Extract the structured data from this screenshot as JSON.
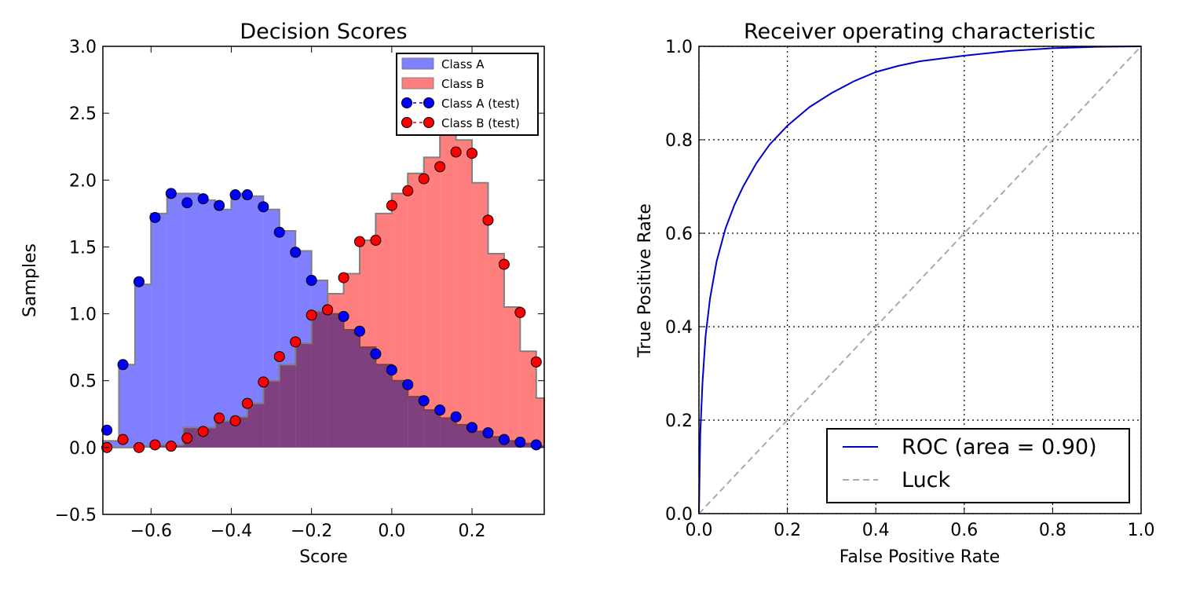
{
  "chart_data": [
    {
      "type": "bar",
      "title": "Decision Scores",
      "xlabel": "Score",
      "ylabel": "Samples",
      "xlim": [
        -0.72,
        0.38
      ],
      "ylim": [
        -0.5,
        3.0
      ],
      "xticks": [
        -0.6,
        -0.4,
        -0.2,
        0.0,
        0.2
      ],
      "xtick_labels": [
        "−0.6",
        "−0.4",
        "−0.2",
        "0.0",
        "0.2"
      ],
      "yticks": [
        -0.5,
        0.0,
        0.5,
        1.0,
        1.5,
        2.0,
        2.5,
        3.0
      ],
      "ytick_labels": [
        "−0.5",
        "0.0",
        "0.5",
        "1.0",
        "1.5",
        "2.0",
        "2.5",
        "3.0"
      ],
      "grid": false,
      "legend_position": "top-right",
      "bin_edges": [
        -0.72,
        -0.68,
        -0.64,
        -0.6,
        -0.56,
        -0.52,
        -0.48,
        -0.44,
        -0.4,
        -0.36,
        -0.32,
        -0.28,
        -0.24,
        -0.2,
        -0.16,
        -0.12,
        -0.08,
        -0.04,
        0.0,
        0.04,
        0.08,
        0.12,
        0.16,
        0.2,
        0.24,
        0.28,
        0.32,
        0.36,
        0.38
      ],
      "series": [
        {
          "name": "Class A",
          "kind": "histogram",
          "color": "#7f7fff",
          "values": [
            0.05,
            0.62,
            1.22,
            1.75,
            1.9,
            1.9,
            1.85,
            1.78,
            1.9,
            1.88,
            1.78,
            1.62,
            1.47,
            1.25,
            1.0,
            0.88,
            0.75,
            0.62,
            0.5,
            0.38,
            0.28,
            0.22,
            0.17,
            0.12,
            0.08,
            0.05,
            0.03,
            0.01
          ]
        },
        {
          "name": "Class B",
          "kind": "histogram",
          "color": "#ff7f7f",
          "values": [
            0.0,
            0.0,
            0.01,
            0.02,
            0.02,
            0.15,
            0.15,
            0.2,
            0.23,
            0.33,
            0.5,
            0.62,
            0.78,
            1.02,
            1.15,
            1.3,
            1.55,
            1.75,
            1.9,
            2.05,
            2.17,
            2.38,
            2.3,
            1.98,
            1.45,
            1.05,
            0.72,
            0.37
          ]
        },
        {
          "name": "Class A (test)",
          "kind": "points",
          "color": "#0000ff",
          "x": [
            -0.71,
            -0.67,
            -0.63,
            -0.59,
            -0.55,
            -0.51,
            -0.47,
            -0.43,
            -0.39,
            -0.36,
            -0.32,
            -0.28,
            -0.24,
            -0.2,
            -0.16,
            -0.12,
            -0.08,
            -0.04,
            0.0,
            0.04,
            0.08,
            0.12,
            0.16,
            0.2,
            0.24,
            0.28,
            0.32,
            0.36
          ],
          "y": [
            0.13,
            0.62,
            1.24,
            1.72,
            1.9,
            1.83,
            1.86,
            1.81,
            1.89,
            1.89,
            1.8,
            1.61,
            1.46,
            1.25,
            1.03,
            0.98,
            0.87,
            0.7,
            0.58,
            0.47,
            0.35,
            0.28,
            0.23,
            0.15,
            0.11,
            0.06,
            0.04,
            0.02
          ]
        },
        {
          "name": "Class B (test)",
          "kind": "points",
          "color": "#ff0000",
          "x": [
            -0.71,
            -0.67,
            -0.63,
            -0.59,
            -0.55,
            -0.51,
            -0.47,
            -0.43,
            -0.39,
            -0.36,
            -0.32,
            -0.28,
            -0.24,
            -0.2,
            -0.16,
            -0.12,
            -0.08,
            -0.04,
            0.0,
            0.04,
            0.08,
            0.12,
            0.16,
            0.2,
            0.24,
            0.28,
            0.32,
            0.36
          ],
          "y": [
            0.0,
            0.06,
            0.0,
            0.02,
            0.01,
            0.07,
            0.12,
            0.22,
            0.2,
            0.33,
            0.49,
            0.68,
            0.79,
            0.99,
            1.03,
            1.27,
            1.54,
            1.55,
            1.81,
            1.92,
            2.01,
            2.1,
            2.21,
            2.2,
            1.7,
            1.37,
            1.01,
            0.64
          ]
        }
      ]
    },
    {
      "type": "line",
      "title": "Receiver operating characteristic",
      "xlabel": "False Positive Rate",
      "ylabel": "True Positive Rate",
      "xlim": [
        0.0,
        1.0
      ],
      "ylim": [
        0.0,
        1.0
      ],
      "xticks": [
        0.0,
        0.2,
        0.4,
        0.6,
        0.8,
        1.0
      ],
      "xtick_labels": [
        "0.0",
        "0.2",
        "0.4",
        "0.6",
        "0.8",
        "1.0"
      ],
      "yticks": [
        0.0,
        0.2,
        0.4,
        0.6,
        0.8,
        1.0
      ],
      "ytick_labels": [
        "0.0",
        "0.2",
        "0.4",
        "0.6",
        "0.8",
        "1.0"
      ],
      "grid": true,
      "legend_position": "lower-right",
      "series": [
        {
          "name": "ROC (area = 0.90)",
          "color": "#0000cc",
          "style": "solid",
          "x": [
            0.0,
            0.003,
            0.008,
            0.015,
            0.025,
            0.04,
            0.06,
            0.08,
            0.1,
            0.13,
            0.16,
            0.2,
            0.25,
            0.3,
            0.35,
            0.4,
            0.45,
            0.5,
            0.6,
            0.7,
            0.8,
            0.9,
            1.0
          ],
          "y": [
            0.0,
            0.17,
            0.28,
            0.38,
            0.46,
            0.54,
            0.61,
            0.66,
            0.7,
            0.75,
            0.79,
            0.83,
            0.87,
            0.9,
            0.925,
            0.945,
            0.958,
            0.968,
            0.98,
            0.99,
            0.996,
            0.999,
            1.0
          ]
        },
        {
          "name": "Luck",
          "color": "#aaaaaa",
          "style": "dashed",
          "x": [
            0.0,
            1.0
          ],
          "y": [
            0.0,
            1.0
          ]
        }
      ]
    }
  ]
}
